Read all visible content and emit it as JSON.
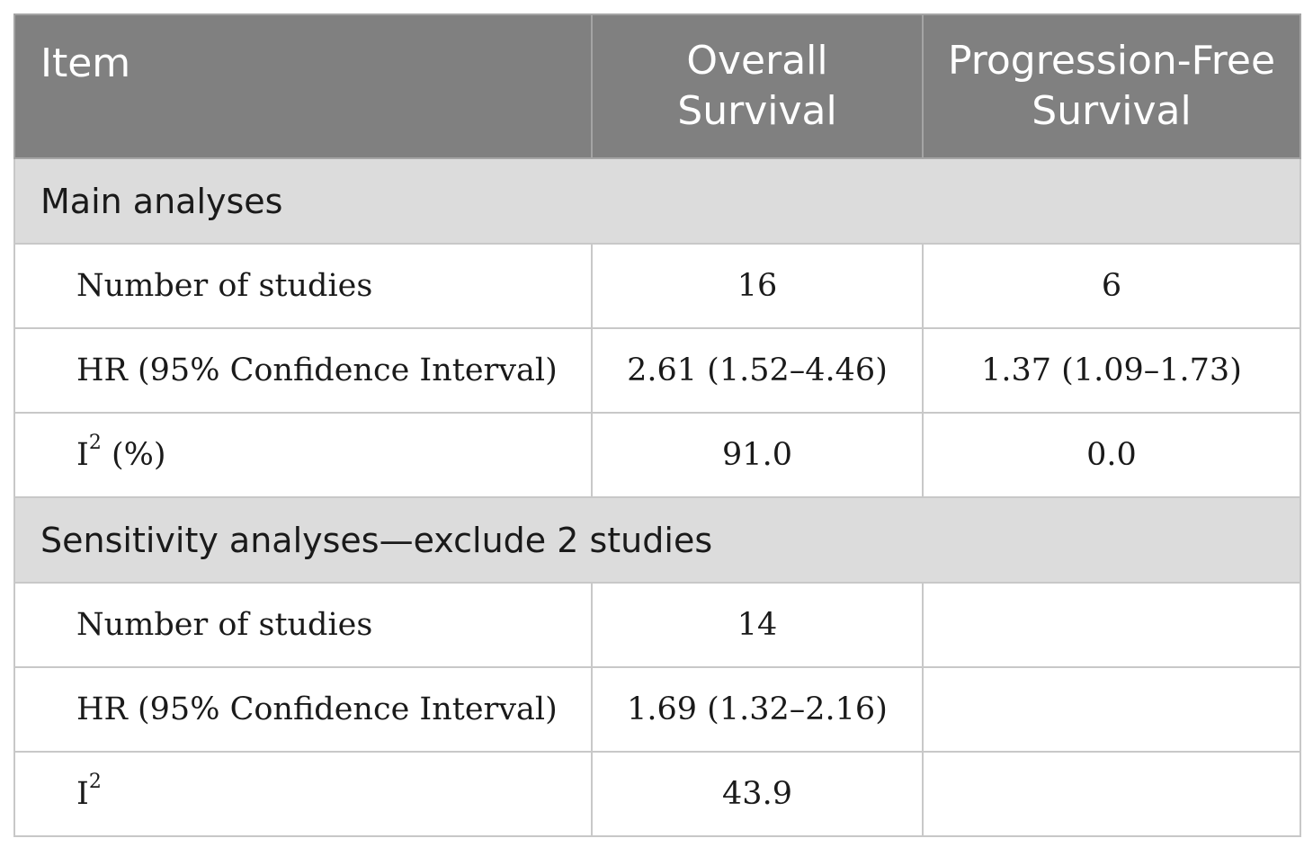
{
  "table": {
    "headers": {
      "item": "Item",
      "overall_line1": "Overall",
      "overall_line2": "Survival",
      "pfs_line1": "Progression-Free",
      "pfs_line2": "Survival"
    },
    "sections": [
      {
        "title": "Main analyses",
        "rows": [
          {
            "label": "Number of studies",
            "label_sup": "",
            "label_suffix": "",
            "os": "16",
            "pfs": "6"
          },
          {
            "label": "HR (95% Confidence Interval)",
            "label_sup": "",
            "label_suffix": "",
            "os": "2.61 (1.52–4.46)",
            "pfs": "1.37 (1.09–1.73)"
          },
          {
            "label": "I",
            "label_sup": "2",
            "label_suffix": " (%)",
            "os": "91.0",
            "pfs": "0.0"
          }
        ]
      },
      {
        "title": "Sensitivity analyses—exclude 2 studies",
        "rows": [
          {
            "label": "Number of studies",
            "label_sup": "",
            "label_suffix": "",
            "os": "14",
            "pfs": ""
          },
          {
            "label": "HR (95% Confidence Interval)",
            "label_sup": "",
            "label_suffix": "",
            "os": "1.69 (1.32–2.16)",
            "pfs": ""
          },
          {
            "label": "I",
            "label_sup": "2",
            "label_suffix": "",
            "os": "43.9",
            "pfs": ""
          }
        ]
      }
    ]
  },
  "colors": {
    "header_bg": "#808080",
    "header_text": "#ffffff",
    "section_bg": "#dcdcdc",
    "border": "#c8c8c8"
  }
}
